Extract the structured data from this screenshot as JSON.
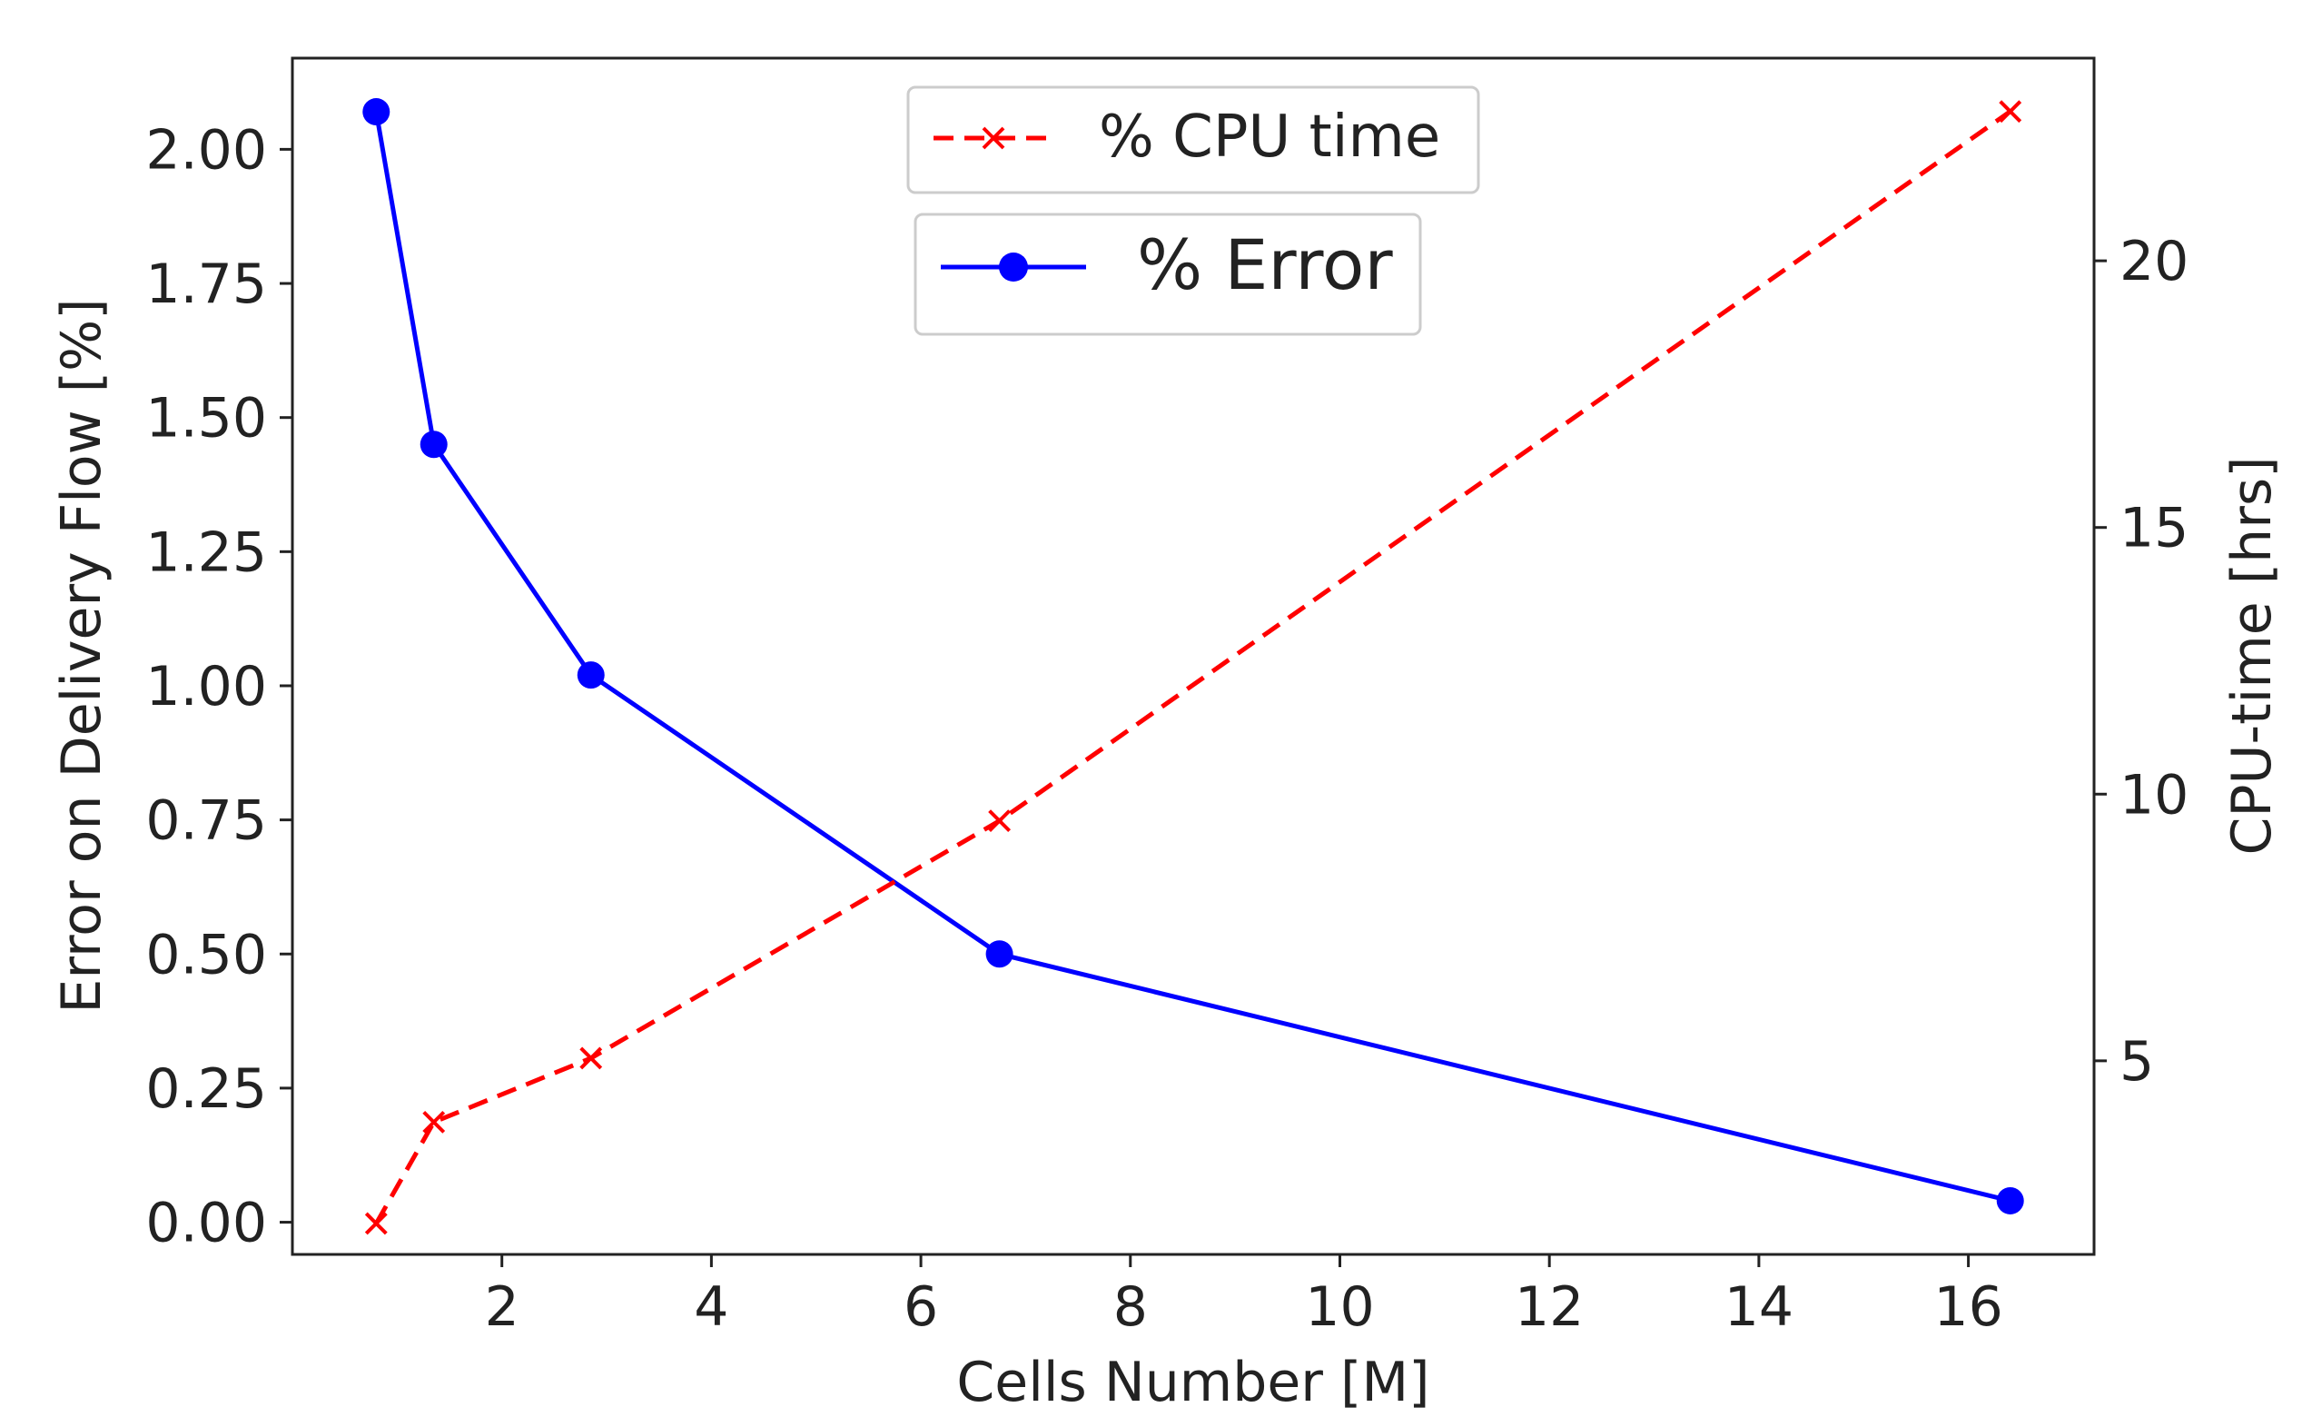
{
  "chart_data": {
    "type": "line",
    "title": "",
    "xlabel": "Cells Number [M]",
    "ylabel_left": "Error on Delivery Flow [%]",
    "ylabel_right": "CPU-time [hrs]",
    "xlim": [
      0,
      17.2
    ],
    "ylim_left": [
      -0.06,
      2.17
    ],
    "ylim_right": [
      1.37,
      23.8
    ],
    "x_ticks": [
      2,
      4,
      6,
      8,
      10,
      12,
      14,
      16
    ],
    "x_tick_labels": [
      "2",
      "4",
      "6",
      "8",
      "10",
      "12",
      "14",
      "16"
    ],
    "y_left_ticks": [
      0.0,
      0.25,
      0.5,
      0.75,
      1.0,
      1.25,
      1.5,
      1.75,
      2.0
    ],
    "y_left_tick_labels": [
      "0.00",
      "0.25",
      "0.50",
      "0.75",
      "1.00",
      "1.25",
      "1.50",
      "1.75",
      "2.00"
    ],
    "y_right_ticks": [
      5,
      10,
      15,
      20
    ],
    "y_right_tick_labels": [
      "5",
      "10",
      "15",
      "20"
    ],
    "grid": false,
    "series": [
      {
        "name": "% Error",
        "axis": "left",
        "color": "#0000ff",
        "style": "solid",
        "marker": "circle",
        "x": [
          0.8,
          1.35,
          2.85,
          6.75,
          16.4
        ],
        "values": [
          2.07,
          1.45,
          1.02,
          0.5,
          0.04
        ]
      },
      {
        "name": "% CPU time",
        "axis": "right",
        "color": "#ff0000",
        "style": "dashed",
        "marker": "x",
        "x": [
          0.8,
          1.35,
          2.85,
          6.75,
          16.4
        ],
        "values": [
          1.95,
          3.85,
          5.05,
          9.5,
          22.8
        ]
      }
    ],
    "legends": [
      {
        "entries": [
          "% CPU time"
        ],
        "placement": "top-center"
      },
      {
        "entries": [
          "% Error"
        ],
        "placement": "upper-center"
      }
    ]
  }
}
